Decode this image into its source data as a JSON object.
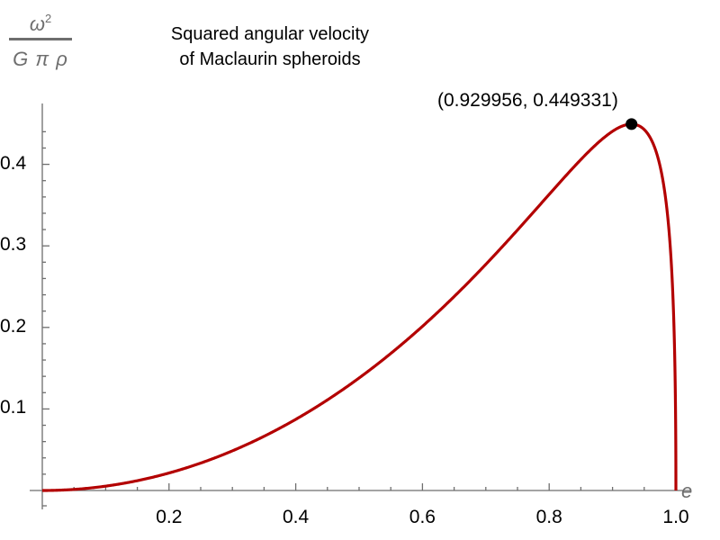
{
  "chart_data": {
    "type": "line",
    "title": "Squared angular velocity of Maclaurin spheroids",
    "title_lines": [
      "Squared angular velocity",
      "of Maclaurin spheroids"
    ],
    "xlabel": "e",
    "ylabel": "ω²/(G π ρ)",
    "ylabel_parts": {
      "numerator": "ω",
      "exponent": "2",
      "denominator": "G π ρ"
    },
    "xlim": [
      0,
      1.0
    ],
    "ylim": [
      0,
      0.46
    ],
    "x_ticks": [
      0.2,
      0.4,
      0.6,
      0.8,
      1.0
    ],
    "x_tick_labels": [
      "0.2",
      "0.4",
      "0.6",
      "0.8",
      "1.0"
    ],
    "y_ticks": [
      0.1,
      0.2,
      0.3,
      0.4
    ],
    "y_tick_labels": [
      "0.1",
      "0.2",
      "0.3",
      "0.4"
    ],
    "grid": false,
    "legend": null,
    "series": [
      {
        "name": "omega^2 / (G pi rho)",
        "color": "#b30000",
        "formula": "2*sqrt(1-e^2)*(3-2e^2)*asin(e)/e^3 - 6(1-e^2)/e^2",
        "x": [
          0.0,
          0.1,
          0.2,
          0.3,
          0.4,
          0.5,
          0.6,
          0.7,
          0.8,
          0.9,
          0.929956,
          0.95,
          0.98,
          0.99,
          1.0
        ],
        "y": [
          0.0,
          0.0054,
          0.0217,
          0.0494,
          0.088,
          0.1384,
          0.2014,
          0.2771,
          0.3636,
          0.4405,
          0.449331,
          0.4405,
          0.3778,
          0.306,
          0.0
        ]
      }
    ],
    "annotations": [
      {
        "x": 0.929956,
        "y": 0.449331,
        "text": "(0.929956, 0.449331)",
        "marker": "filled-circle",
        "color": "#000000"
      }
    ]
  },
  "colors": {
    "curve": "#b30000",
    "axis": "#6e6e6e",
    "marker": "#000000"
  }
}
